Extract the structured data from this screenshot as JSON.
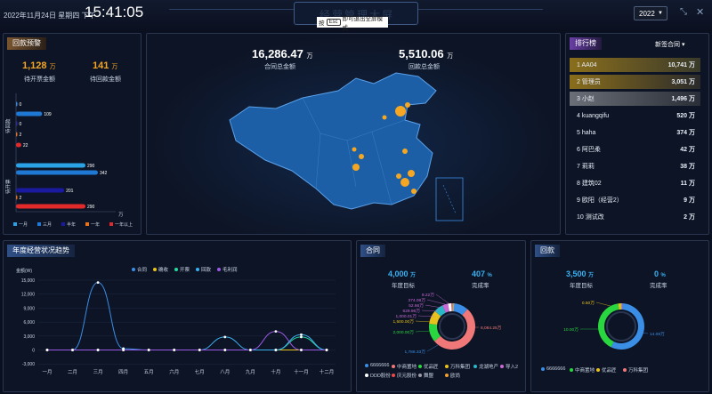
{
  "header": {
    "date": "2022年11月24日 星期四 下午",
    "time": "15:41:05",
    "title": "经营管理大屏",
    "esc_prefix": "按",
    "esc_key": "Esc",
    "esc_suffix": "即可退出全屏模式",
    "year": "2022",
    "fullscreen_icon": "fullscreen-exit-icon",
    "close_icon": "close-icon"
  },
  "collection_alert": {
    "title": "回款预警",
    "uninvoiced_value": "1,128",
    "uninvoiced_unit": "万",
    "uninvoiced_label": "待开票金额",
    "uncollected_value": "141",
    "uncollected_unit": "万",
    "uncollected_label": "待回款金额",
    "group1": "待回款",
    "group2": "待开票",
    "unit": "万",
    "bars": [
      {
        "value": 0,
        "label": "0",
        "color": "#3a8ee6"
      },
      {
        "value": 109,
        "label": "109",
        "color": "#1e78d4"
      },
      {
        "value": 0,
        "label": "0",
        "color": "#2a2aa8"
      },
      {
        "value": 2,
        "label": "2",
        "color": "#e8731c"
      },
      {
        "value": 22,
        "label": "22",
        "color": "#e22a2a"
      },
      {
        "value": 290,
        "label": "290",
        "color": "#2aa3e6"
      },
      {
        "value": 342,
        "label": "342",
        "color": "#1e78d4"
      },
      {
        "value": 201,
        "label": "201",
        "color": "#1a1aa0"
      },
      {
        "value": 2,
        "label": "2",
        "color": "#e8731c"
      },
      {
        "value": 290,
        "label": "290",
        "color": "#e22a2a"
      }
    ],
    "legend": [
      {
        "label": "一月",
        "color": "#2aa3e6"
      },
      {
        "label": "三月",
        "color": "#1e78d4"
      },
      {
        "label": "半年",
        "color": "#1a1aa0"
      },
      {
        "label": "一年",
        "color": "#e8731c"
      },
      {
        "label": "一年以上",
        "color": "#e22a2a"
      }
    ]
  },
  "map_panel": {
    "contract_total": "16,286.47",
    "contract_unit": "万",
    "contract_label": "合同总金额",
    "collection_total": "5,510.06",
    "collection_unit": "万",
    "collection_label": "回款总金额",
    "color_land": "#1c5fa6",
    "color_dot": "#f5a623"
  },
  "ranking": {
    "title": "排行榜",
    "selector": "新签合同",
    "items": [
      {
        "name": "1 AA04",
        "value": "10,741 万"
      },
      {
        "name": "2 管理员",
        "value": "3,051 万"
      },
      {
        "name": "3 小赵",
        "value": "1,496 万"
      },
      {
        "name": "4 kuangqifu",
        "value": "520 万"
      },
      {
        "name": "5 haha",
        "value": "374 万"
      },
      {
        "name": "6 阿巴柔",
        "value": "42 万"
      },
      {
        "name": "7 莉莉",
        "value": "38 万"
      },
      {
        "name": "8 建筑02",
        "value": "11 万"
      },
      {
        "name": "9 欧阳（经营2）",
        "value": "9 万"
      },
      {
        "name": "10 测试改",
        "value": "2 万"
      }
    ]
  },
  "trend": {
    "title": "年度经营状况趋势",
    "unit_label": "金额(W)",
    "legend": [
      {
        "label": "合同",
        "color": "#3a8ee6"
      },
      {
        "label": "确收",
        "color": "#e8c21c"
      },
      {
        "label": "开票",
        "color": "#2ad6a0"
      },
      {
        "label": "回款",
        "color": "#3ab0f0"
      },
      {
        "label": "毛利润",
        "color": "#9a5ae6"
      }
    ],
    "chart_data": {
      "type": "line",
      "categories": [
        "一月",
        "二月",
        "三月",
        "四月",
        "五月",
        "六月",
        "七月",
        "八月",
        "九月",
        "十月",
        "十一月",
        "十二月"
      ],
      "ylim": [
        -2000,
        15000
      ],
      "yticks": [
        "15,000",
        "12,000",
        "9,000",
        "6,000",
        "3,000",
        "0",
        "-3,000"
      ],
      "series": [
        {
          "name": "合同",
          "color": "#3a8ee6",
          "values": [
            0,
            0,
            14500,
            300,
            0,
            0,
            0,
            0,
            0,
            0,
            0,
            0
          ]
        },
        {
          "name": "确收",
          "color": "#e8c21c",
          "values": [
            0,
            0,
            0,
            0,
            0,
            0,
            0,
            0,
            0,
            0,
            0,
            0
          ]
        },
        {
          "name": "开票",
          "color": "#2ad6a0",
          "values": [
            0,
            0,
            0,
            0,
            0,
            0,
            0,
            0,
            0,
            0,
            2800,
            0
          ]
        },
        {
          "name": "回款",
          "color": "#3ab0f0",
          "values": [
            0,
            0,
            0,
            0,
            0,
            0,
            0,
            2800,
            0,
            0,
            3300,
            0
          ]
        },
        {
          "name": "毛利润",
          "color": "#9a5ae6",
          "values": [
            0,
            0,
            0,
            0,
            0,
            0,
            0,
            0,
            0,
            4000,
            0,
            0
          ]
        }
      ]
    }
  },
  "contract": {
    "title": "合同",
    "target": "4,000",
    "target_unit": "万",
    "target_label": "年度目标",
    "rate": "407",
    "rate_unit": "%",
    "rate_label": "完成率",
    "donut_labels": [
      {
        "text": "8,084.25万",
        "color": "#f07878"
      },
      {
        "text": "2,000.00万",
        "color": "#2ad640"
      },
      {
        "text": "1,500.00万",
        "color": "#e8c21c"
      },
      {
        "text": "1,000.01万",
        "color": "#c86ad6"
      },
      {
        "text": "629.96万",
        "color": "#c86ad6"
      },
      {
        "text": "52.66万",
        "color": "#c86ad6"
      },
      {
        "text": "374.08万",
        "color": "#c86ad6"
      },
      {
        "text": "9.22万",
        "color": "#c86ad6"
      },
      {
        "text": "1,788.33万",
        "color": "#3a8ee6"
      }
    ],
    "chart_data": {
      "type": "pie",
      "slices": [
        {
          "name": "6666666",
          "value": 1788.33,
          "color": "#3a8ee6"
        },
        {
          "name": "中商置地",
          "value": 8084.25,
          "color": "#f07878"
        },
        {
          "name": "优品匠",
          "value": 2000,
          "color": "#2ad640"
        },
        {
          "name": "万科集团",
          "value": 1500,
          "color": "#e8c21c"
        },
        {
          "name": "龙湖地产",
          "value": 1000.01,
          "color": "#2ab8c8"
        },
        {
          "name": "导入2",
          "value": 629.96,
          "color": "#c86ad6"
        },
        {
          "name": "DDD股份",
          "value": 374.08,
          "color": "#ffffff"
        },
        {
          "name": "庆元股份",
          "value": 52.66,
          "color": "#e84a4a"
        },
        {
          "name": "舞盟",
          "value": 9.22,
          "color": "#9a9aa8"
        },
        {
          "name": "欧尚",
          "value": 5,
          "color": "#f0a030"
        }
      ]
    },
    "legend": [
      {
        "label": "6666666",
        "color": "#3a8ee6"
      },
      {
        "label": "中商置地",
        "color": "#f07878"
      },
      {
        "label": "优品匠",
        "color": "#2ad640"
      },
      {
        "label": "万科集团",
        "color": "#e8c21c"
      },
      {
        "label": "龙湖地产",
        "color": "#2ab8c8"
      },
      {
        "label": "导入2",
        "color": "#c86ad6"
      },
      {
        "label": "DDD股份",
        "color": "#ffffff"
      },
      {
        "label": "庆元股份",
        "color": "#e84a4a"
      },
      {
        "label": "舞盟",
        "color": "#9a9aa8"
      },
      {
        "label": "欧尚",
        "color": "#f0a030"
      }
    ]
  },
  "collection": {
    "title": "回款",
    "target": "3,500",
    "target_unit": "万",
    "target_label": "年度目标",
    "rate": "0",
    "rate_unit": "%",
    "rate_label": "完成率",
    "donut_labels": [
      {
        "text": "0.50万",
        "color": "#e8c21c"
      },
      {
        "text": "10.00万",
        "color": "#2ad640"
      },
      {
        "text": "14.08万",
        "color": "#3a8ee6"
      }
    ],
    "chart_data": {
      "type": "pie",
      "slices": [
        {
          "name": "6666666",
          "value": 14.08,
          "color": "#3a8ee6"
        },
        {
          "name": "中商置地",
          "value": 10,
          "color": "#2ad640"
        },
        {
          "name": "优品匠",
          "value": 0.5,
          "color": "#e8c21c"
        },
        {
          "name": "万科集团",
          "value": 0.01,
          "color": "#f07878"
        }
      ]
    },
    "legend": [
      {
        "label": "6666666",
        "color": "#3a8ee6"
      },
      {
        "label": "中商置地",
        "color": "#2ad640"
      },
      {
        "label": "优品匠",
        "color": "#e8c21c"
      },
      {
        "label": "万科集团",
        "color": "#f07878"
      }
    ]
  }
}
